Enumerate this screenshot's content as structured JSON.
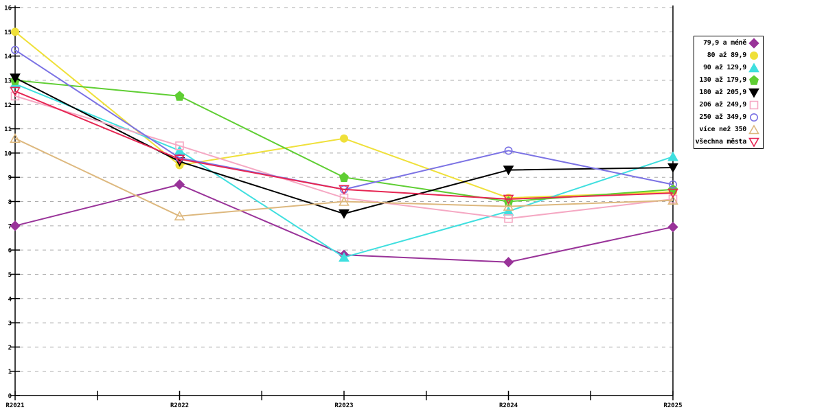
{
  "chart_data": {
    "type": "line",
    "title": "",
    "xlabel": "",
    "ylabel": "",
    "categories": [
      "R2021",
      "R2022",
      "R2023",
      "R2024",
      "R2025"
    ],
    "ylim": [
      0,
      16
    ],
    "ytick_step": 1,
    "yticks": [
      "0",
      "1",
      "2",
      "3",
      "4",
      "5",
      "6",
      "7",
      "8",
      "9",
      "10",
      "11",
      "12",
      "13",
      "14",
      "15",
      "16"
    ],
    "grid": "horizontal-dashed",
    "legend_position": "outside-right",
    "series": [
      {
        "name": "79,9 a méně",
        "color": "#993399",
        "marker": "diamond",
        "fill": "filled",
        "values": [
          7.0,
          8.7,
          5.8,
          5.5,
          6.95
        ]
      },
      {
        "name": "80 až 89,9",
        "color": "#EFE03A",
        "marker": "circle",
        "fill": "filled",
        "values": [
          15.0,
          9.5,
          10.6,
          8.15,
          8.4
        ]
      },
      {
        "name": "90 až 129,9",
        "color": "#3FDFDF",
        "marker": "triangle-up",
        "fill": "filled",
        "values": [
          12.85,
          10.1,
          5.7,
          7.6,
          9.85
        ]
      },
      {
        "name": "130 až 179,9",
        "color": "#5FCE33",
        "marker": "pentagon",
        "fill": "filled",
        "values": [
          13.0,
          12.35,
          9.0,
          8.0,
          8.5
        ]
      },
      {
        "name": "180 až 205,9",
        "color": "#000000",
        "marker": "triangle-down",
        "fill": "filled",
        "values": [
          13.1,
          9.65,
          7.5,
          9.3,
          9.4
        ]
      },
      {
        "name": "206 až 249,9",
        "color": "#F5A8C3",
        "marker": "square",
        "fill": "open",
        "values": [
          12.35,
          10.3,
          8.15,
          7.3,
          8.1
        ]
      },
      {
        "name": "250 až 349,9",
        "color": "#7B72E4",
        "marker": "circle",
        "fill": "open",
        "values": [
          14.25,
          9.8,
          8.5,
          10.1,
          8.7
        ]
      },
      {
        "name": "více než 350",
        "color": "#DDB87E",
        "marker": "triangle-up",
        "fill": "open",
        "values": [
          10.6,
          7.4,
          8.0,
          7.8,
          8.05
        ]
      },
      {
        "name": "všechna města",
        "color": "#E62653",
        "marker": "triangle-down",
        "fill": "open",
        "values": [
          12.55,
          9.75,
          8.5,
          8.1,
          8.35
        ]
      }
    ]
  },
  "colors": {
    "background": "#FFFFFF",
    "grid": "#ABABAB",
    "axis": "#000000"
  }
}
